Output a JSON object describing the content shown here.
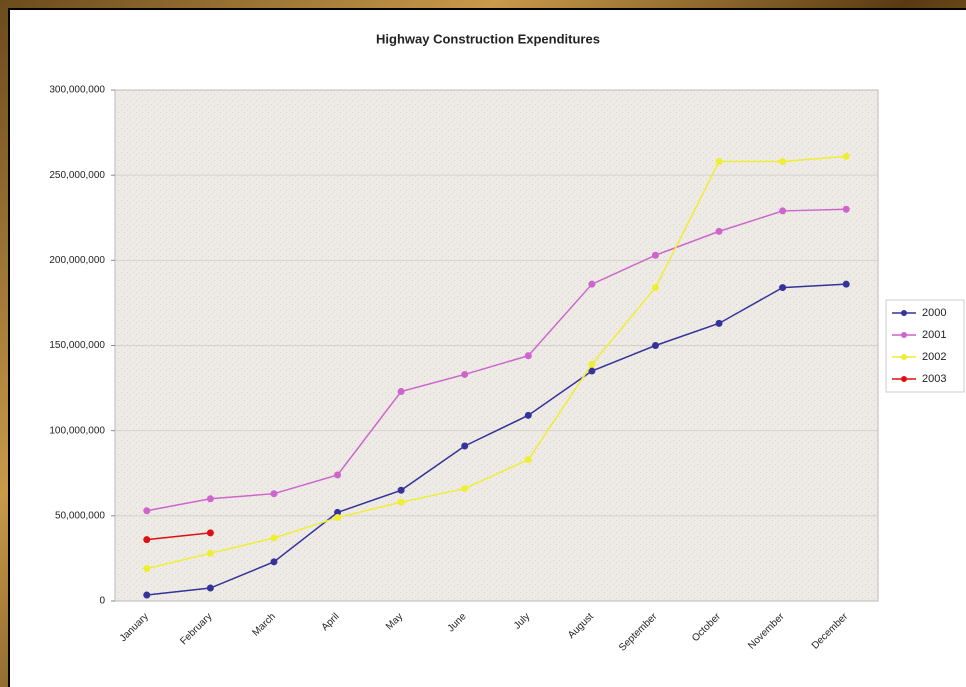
{
  "chart_data": {
    "type": "line",
    "title": "Highway Construction Expenditures",
    "categories": [
      "January",
      "February",
      "March",
      "April",
      "May",
      "June",
      "July",
      "August",
      "September",
      "October",
      "November",
      "December"
    ],
    "series": [
      {
        "name": "2000",
        "color": "#333399",
        "values": [
          3500000,
          7600000,
          23000000,
          52000000,
          65000000,
          91000000,
          109000000,
          135000000,
          150000000,
          163000000,
          184000000,
          186000000
        ]
      },
      {
        "name": "2001",
        "color": "#cc66cc",
        "values": [
          53000000,
          60000000,
          63000000,
          74000000,
          123000000,
          133000000,
          144000000,
          186000000,
          203000000,
          217000000,
          229000000,
          230000000
        ]
      },
      {
        "name": "2002",
        "color": "#eeee33",
        "values": [
          19000000,
          28000000,
          37000000,
          49000000,
          58000000,
          66000000,
          83000000,
          139000000,
          184000000,
          258000000,
          258000000,
          261000000
        ]
      },
      {
        "name": "2003",
        "color": "#dd1111",
        "values": [
          36000000,
          40000000,
          null,
          null,
          null,
          null,
          null,
          null,
          null,
          null,
          null,
          null
        ]
      }
    ],
    "ylim": [
      0,
      300000000
    ],
    "yticks": [
      0,
      {
        "value": 50000000,
        "label": "50,000,000"
      },
      {
        "value": 100000000,
        "label": "100,000,000"
      },
      {
        "value": 150000000,
        "label": "150,000,000"
      },
      {
        "value": 200000000,
        "label": "200,000,000"
      },
      {
        "value": 250000000,
        "label": "250,000,000"
      },
      {
        "value": 300000000,
        "label": "300,000,000"
      }
    ],
    "grid": true,
    "legend": "right"
  }
}
